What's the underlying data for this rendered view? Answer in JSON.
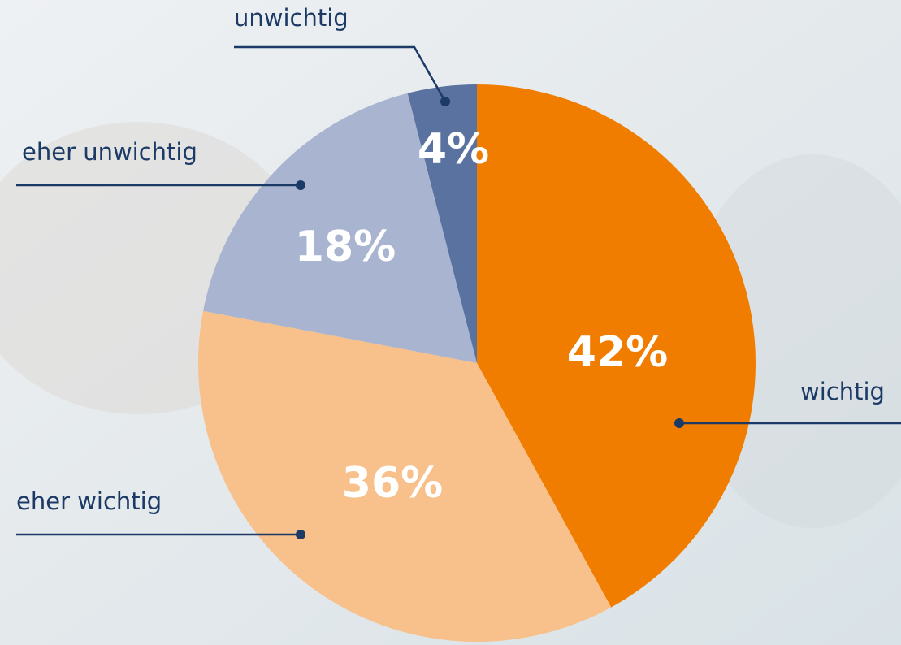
{
  "chart_data": {
    "type": "pie",
    "categories": [
      "wichtig",
      "eher wichtig",
      "eher unwichtig",
      "unwichtig"
    ],
    "values": [
      42,
      36,
      18,
      4
    ],
    "value_labels": [
      "42%",
      "36%",
      "18%",
      "4%"
    ],
    "colors": [
      "#f07d00",
      "#f8c08a",
      "#a9b4d0",
      "#5a72a0"
    ]
  }
}
